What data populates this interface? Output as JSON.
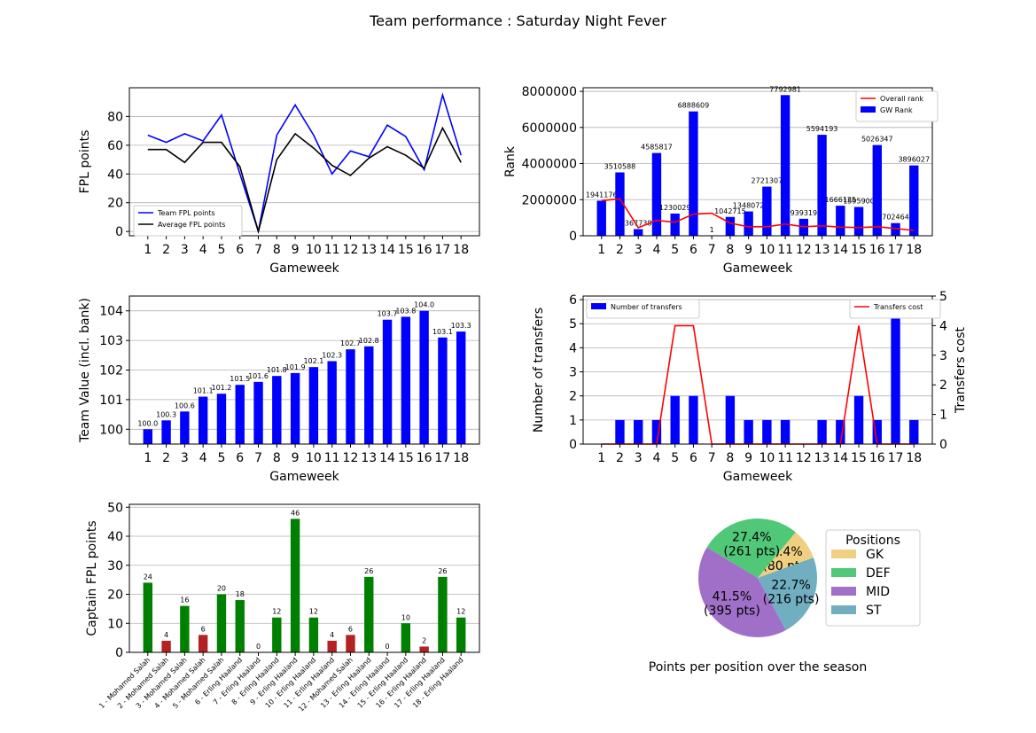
{
  "figure": {
    "title": "Team performance : Saturday Night Fever"
  },
  "chart_data": [
    {
      "id": "fpl_points",
      "type": "line",
      "x": [
        1,
        2,
        3,
        4,
        5,
        6,
        7,
        8,
        9,
        10,
        11,
        12,
        13,
        14,
        15,
        16,
        17,
        18
      ],
      "xlabel": "Gameweek",
      "ylabel": "FPL points",
      "ylim": [
        -3,
        100
      ],
      "yticks": [
        0,
        20,
        40,
        60,
        80
      ],
      "grid": "y",
      "legend": "lower-left",
      "series": [
        {
          "name": "Team FPL points",
          "color": "#0000ff",
          "values": [
            67,
            62,
            68,
            63,
            81,
            40,
            0,
            67,
            88,
            67,
            40,
            56,
            52,
            74,
            66,
            43,
            95,
            53
          ]
        },
        {
          "name": "Average FPL points",
          "color": "#000000",
          "values": [
            57,
            57,
            48,
            62,
            62,
            45,
            0,
            50,
            68,
            58,
            46,
            39,
            51,
            59,
            53,
            44,
            72,
            48
          ]
        }
      ]
    },
    {
      "id": "rank",
      "type": "bar",
      "x": [
        1,
        2,
        3,
        4,
        5,
        6,
        7,
        8,
        9,
        10,
        11,
        12,
        13,
        14,
        15,
        16,
        17,
        18
      ],
      "xlabel": "Gameweek",
      "ylabel": "Rank",
      "ylim": [
        0,
        8200000
      ],
      "yticks": [
        0,
        2000000,
        4000000,
        6000000,
        8000000
      ],
      "grid": "y",
      "legend": "upper-right",
      "bar_series": {
        "name": "GW Rank",
        "color": "#0000ff",
        "values": [
          1941176,
          3510588,
          367738,
          4585817,
          1230029,
          6888609,
          1,
          1042715,
          1348072,
          2721307,
          7792981,
          939319,
          5594193,
          1666125,
          1595900,
          5026347,
          702464,
          3896027
        ],
        "labels": [
          "1941176",
          "3510588",
          "367738",
          "4585817",
          "1230029",
          "6888609",
          "1",
          "1042715",
          "1348072",
          "2721307",
          "7792981",
          "939319",
          "5594193",
          "1666125",
          "1595900",
          "5026347",
          "702464",
          "3896027"
        ]
      },
      "line_series": {
        "name": "Overall rank",
        "color": "#ff0000",
        "values": [
          1941176,
          2050000,
          450000,
          850000,
          750000,
          1200000,
          1250000,
          700000,
          500000,
          500000,
          650000,
          500000,
          550000,
          480000,
          450000,
          500000,
          400000,
          300000
        ]
      }
    },
    {
      "id": "team_value",
      "type": "bar",
      "x": [
        1,
        2,
        3,
        4,
        5,
        6,
        7,
        8,
        9,
        10,
        11,
        12,
        13,
        14,
        15,
        16,
        17,
        18
      ],
      "xlabel": "Gameweek",
      "ylabel": "Team Value (incl. bank)",
      "ylim": [
        99.5,
        104.5
      ],
      "yticks": [
        100,
        101,
        102,
        103,
        104
      ],
      "grid": "y",
      "series": [
        {
          "name": "",
          "color": "#0000ff",
          "values": [
            100.0,
            100.3,
            100.6,
            101.1,
            101.2,
            101.5,
            101.6,
            101.8,
            101.9,
            102.1,
            102.3,
            102.7,
            102.8,
            103.7,
            103.8,
            104.0,
            103.1,
            103.3
          ],
          "labels": [
            "100.0",
            "100.3",
            "100.6",
            "101.1",
            "101.2",
            "101.5",
            "101.6",
            "101.8",
            "101.9",
            "102.1",
            "102.3",
            "102.7",
            "102.8",
            "103.7",
            "103.8",
            "104.0",
            "103.1",
            "103.3"
          ]
        }
      ]
    },
    {
      "id": "transfers",
      "type": "bar",
      "x": [
        1,
        2,
        3,
        4,
        5,
        6,
        7,
        8,
        9,
        10,
        11,
        12,
        13,
        14,
        15,
        16,
        17,
        18
      ],
      "xlabel": "Gameweek",
      "ylabel": "Number of transfers",
      "ylim": [
        0,
        6.15
      ],
      "yticks": [
        0,
        1,
        2,
        3,
        4,
        5,
        6
      ],
      "y2label": "Transfers cost",
      "y2lim": [
        0,
        5
      ],
      "y2ticks": [
        0,
        1,
        2,
        3,
        4,
        5
      ],
      "grid": "y",
      "bar_series": {
        "name": "Number of transfers",
        "color": "#0000ff",
        "values": [
          0,
          1,
          1,
          1,
          2,
          2,
          0,
          2,
          1,
          1,
          1,
          0,
          1,
          1,
          2,
          1,
          6,
          1
        ]
      },
      "line_series": {
        "name": "Transfers cost",
        "color": "#ff0000",
        "values": [
          0,
          0,
          0,
          0,
          4,
          4,
          0,
          0,
          0,
          0,
          0,
          0,
          0,
          0,
          4,
          0,
          0,
          0
        ]
      },
      "legend_bar": "upper-left",
      "legend_line": "upper-right"
    },
    {
      "id": "captain",
      "type": "bar",
      "categories": [
        "1 - Mohamed Salah",
        "2 - Mohamed Salah",
        "3 - Mohamed Salah",
        "4 - Mohamed Salah",
        "5 - Mohamed Salah",
        "6 - Erling Haaland",
        "7 - Erling Haaland",
        "8 - Erling Haaland",
        "9 - Erling Haaland",
        "10 - Erling Haaland",
        "11 - Erling Haaland",
        "12 - Mohamed Salah",
        "13 - Erling Haaland",
        "14 - Erling Haaland",
        "15 - Erling Haaland",
        "16 - Erling Haaland",
        "17 - Erling Haaland",
        "18 - Erling Haaland"
      ],
      "ylabel": "Captain FPL points",
      "ylim": [
        0,
        51
      ],
      "yticks": [
        0,
        10,
        20,
        30,
        40,
        50
      ],
      "grid": "y",
      "series": [
        {
          "name": "",
          "values": [
            24,
            4,
            16,
            6,
            20,
            18,
            0,
            12,
            46,
            12,
            4,
            6,
            26,
            0,
            10,
            2,
            26,
            12
          ],
          "labels": [
            "24",
            "4",
            "16",
            "6",
            "20",
            "18",
            "0",
            "12",
            "46",
            "12",
            "4",
            "6",
            "26",
            "0",
            "10",
            "2",
            "26",
            "12"
          ],
          "colors": [
            "#008000",
            "#b22222",
            "#008000",
            "#b22222",
            "#008000",
            "#008000",
            "#008000",
            "#008000",
            "#008000",
            "#008000",
            "#b22222",
            "#b22222",
            "#008000",
            "#008000",
            "#008000",
            "#b22222",
            "#008000",
            "#008000"
          ]
        }
      ]
    },
    {
      "id": "positions",
      "type": "pie",
      "title": "Points per position over the season",
      "legend_title": "Positions",
      "legend": "right",
      "slices": [
        {
          "name": "GK",
          "value": 80,
          "label": "8.4%\n(80 pts)",
          "color": "#f0d080"
        },
        {
          "name": "DEF",
          "value": 261,
          "label": "27.4%\n(261 pts)",
          "color": "#50c878"
        },
        {
          "name": "MID",
          "value": 395,
          "label": "41.5%\n(395 pts)",
          "color": "#a070c8"
        },
        {
          "name": "ST",
          "value": 216,
          "label": "22.7%\n(216 pts)",
          "color": "#70aec0"
        }
      ]
    }
  ]
}
